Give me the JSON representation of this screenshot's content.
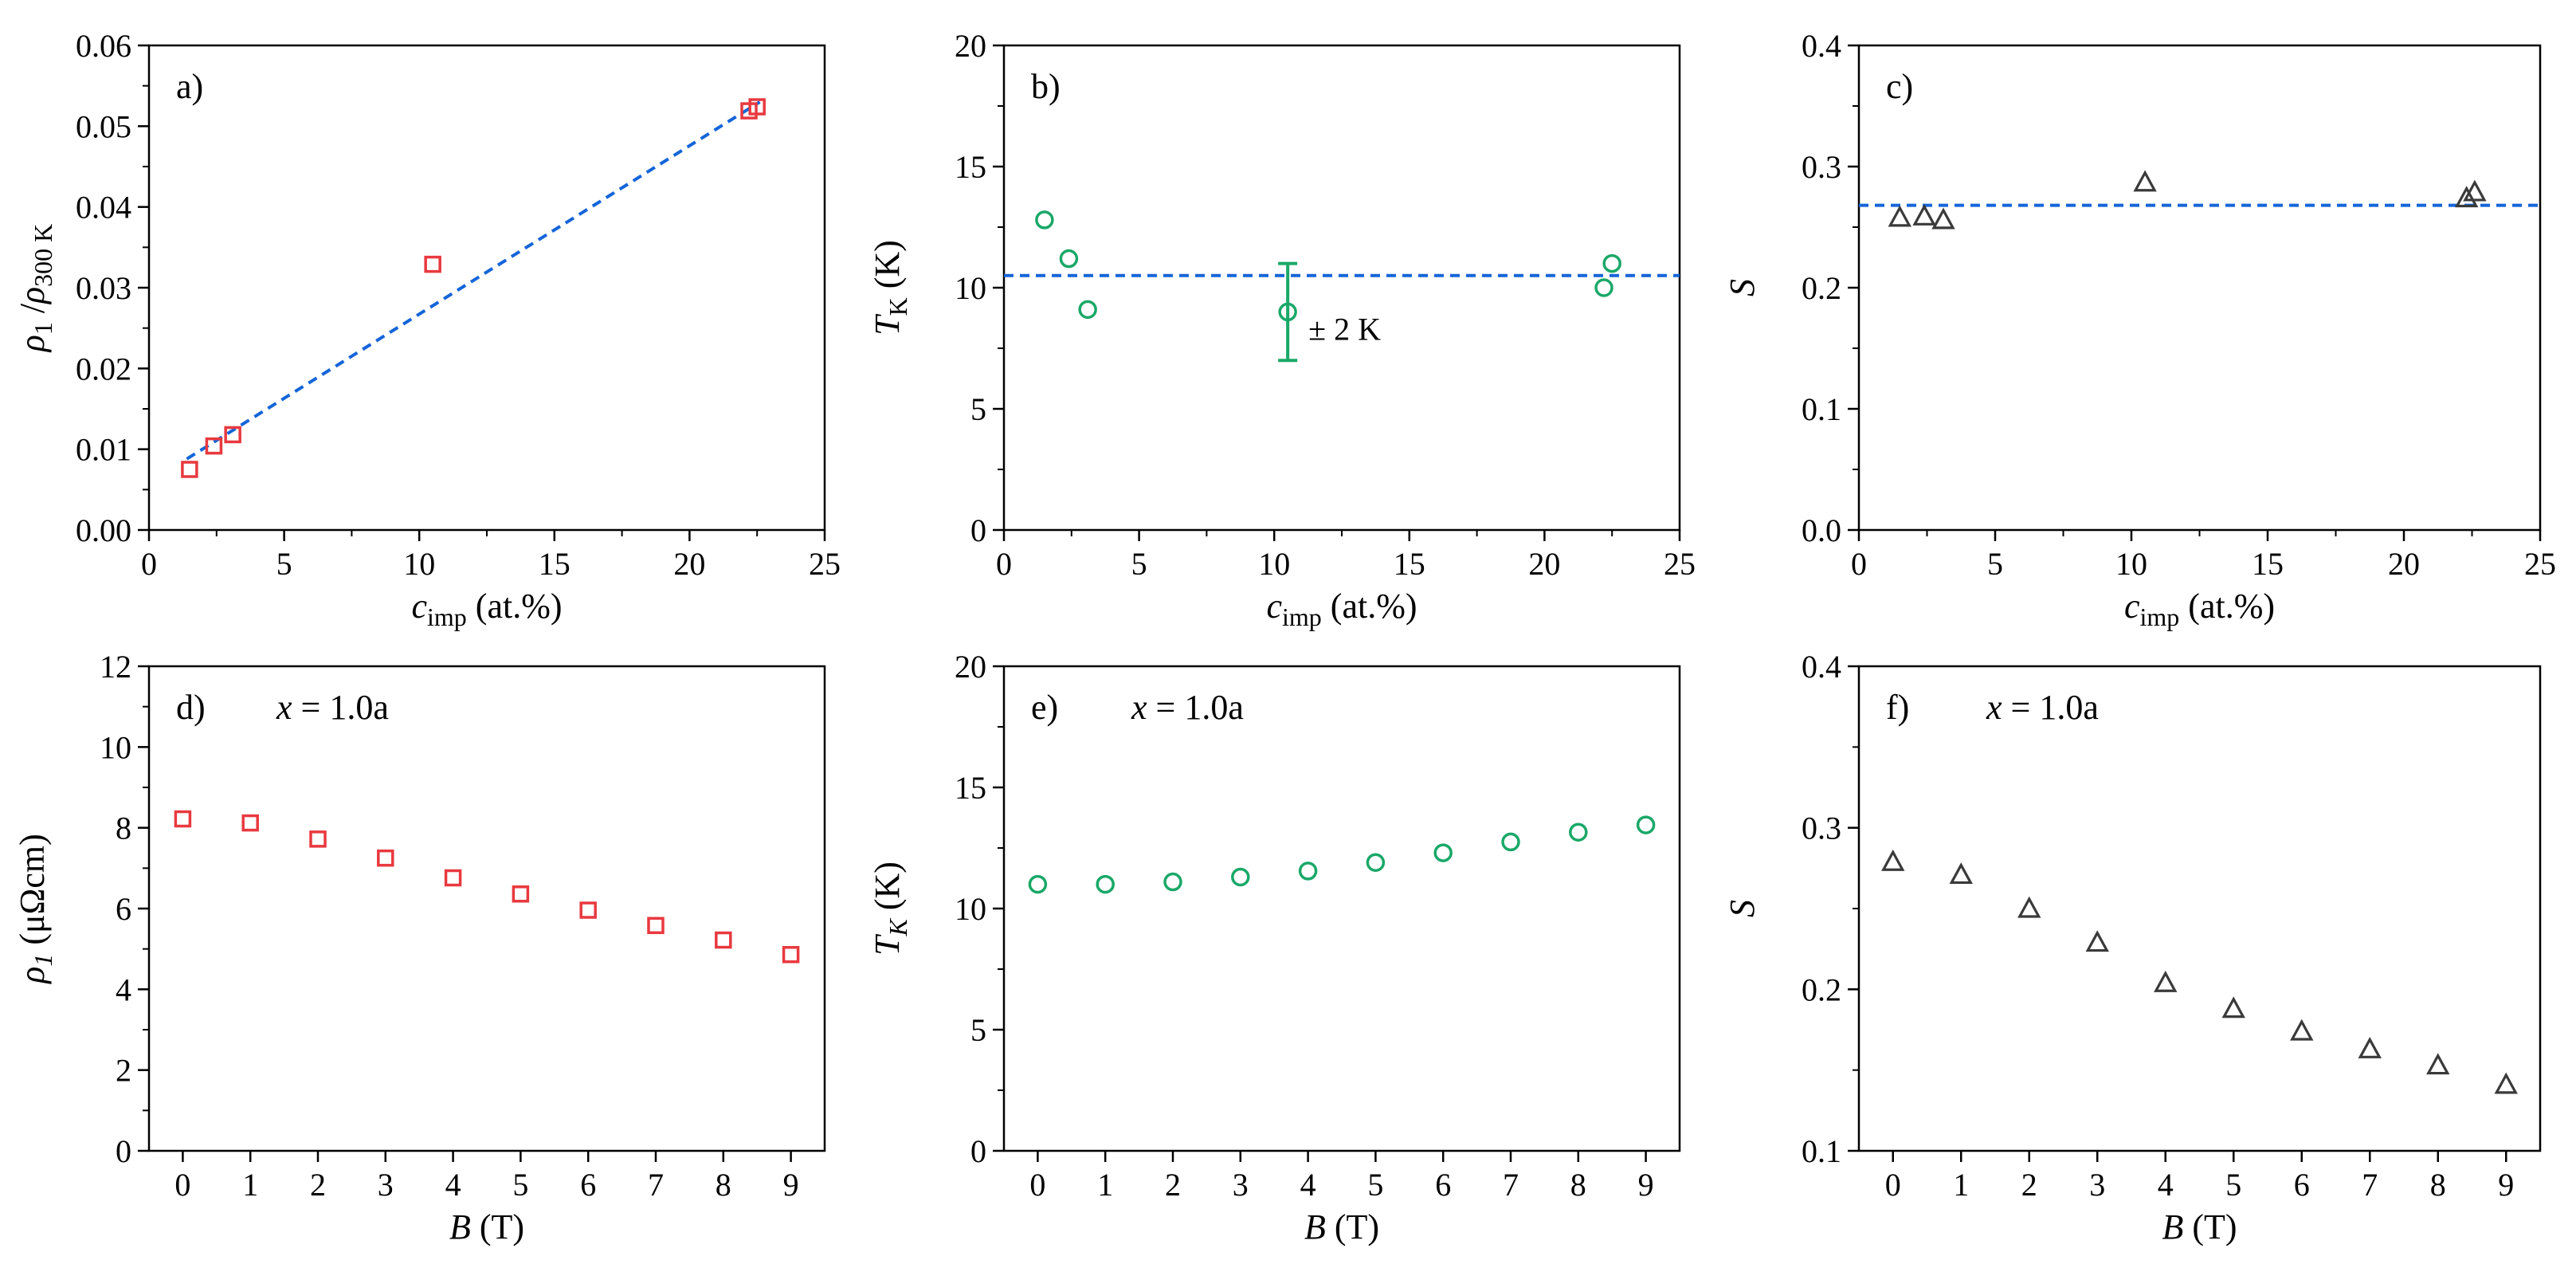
{
  "colors": {
    "red": "#e8393f",
    "green": "#1aa868",
    "gray": "#3a3a3a",
    "blue": "#1565d8",
    "axis": "#000000"
  },
  "chart_data": [
    {
      "id": "a",
      "type": "scatter",
      "tag": "a)",
      "note": "",
      "marker": "square",
      "color": "red",
      "xlabel": {
        "italic": "c",
        "sub": "imp",
        "rest": " (at.%)"
      },
      "ylabel": {
        "parts": [
          {
            "t": "ρ",
            "it": true
          },
          {
            "t": "1",
            "sub": true
          },
          {
            "t": " /"
          },
          {
            "t": "ρ",
            "it": true
          },
          {
            "t": "300 K",
            "sub": true
          }
        ]
      },
      "xlim": [
        0,
        25
      ],
      "ylim": [
        0,
        0.06
      ],
      "xticks": [
        0,
        5,
        10,
        15,
        20,
        25
      ],
      "xtick_labels": [
        "0",
        "5",
        "10",
        "15",
        "20",
        "25"
      ],
      "yticks": [
        0,
        0.01,
        0.02,
        0.03,
        0.04,
        0.05,
        0.06
      ],
      "ytick_labels": [
        "0.00",
        "0.01",
        "0.02",
        "0.03",
        "0.04",
        "0.05",
        "0.06"
      ],
      "points": [
        [
          1.5,
          0.0075
        ],
        [
          2.4,
          0.0104
        ],
        [
          3.1,
          0.0118
        ],
        [
          10.5,
          0.0329
        ],
        [
          22.2,
          0.0519
        ],
        [
          22.5,
          0.0524
        ]
      ],
      "fit_line": [
        [
          1.4,
          0.0088
        ],
        [
          22.6,
          0.053
        ]
      ]
    },
    {
      "id": "b",
      "type": "scatter",
      "tag": "b)",
      "note": "",
      "marker": "circle",
      "color": "green",
      "xlabel": {
        "italic": "c",
        "sub": "imp",
        "rest": " (at.%)"
      },
      "ylabel": {
        "parts": [
          {
            "t": "T",
            "it": true
          },
          {
            "t": "K",
            "sub": true
          },
          {
            "t": " (K)"
          }
        ]
      },
      "xlim": [
        0,
        25
      ],
      "ylim": [
        0,
        20
      ],
      "xticks": [
        0,
        5,
        10,
        15,
        20,
        25
      ],
      "xtick_labels": [
        "0",
        "5",
        "10",
        "15",
        "20",
        "25"
      ],
      "yticks": [
        0,
        5,
        10,
        15,
        20
      ],
      "ytick_labels": [
        "0",
        "5",
        "10",
        "15",
        "20"
      ],
      "points": [
        [
          1.5,
          12.8
        ],
        [
          2.4,
          11.2
        ],
        [
          3.1,
          9.1
        ],
        [
          10.5,
          9.0
        ],
        [
          22.2,
          10.0
        ],
        [
          22.5,
          11.0
        ]
      ],
      "hline": 10.5,
      "errorbar": {
        "x": 10.5,
        "y": 9.0,
        "err": 2.0,
        "label": "± 2 K"
      }
    },
    {
      "id": "c",
      "type": "scatter",
      "tag": "c)",
      "note": "",
      "marker": "triangle",
      "color": "gray",
      "xlabel": {
        "italic": "c",
        "sub": "imp",
        "rest": " (at.%)"
      },
      "ylabel": {
        "parts": [
          {
            "t": "S",
            "it": true
          }
        ]
      },
      "xlim": [
        0,
        25
      ],
      "ylim": [
        0,
        0.4
      ],
      "xticks": [
        0,
        5,
        10,
        15,
        20,
        25
      ],
      "xtick_labels": [
        "0",
        "5",
        "10",
        "15",
        "20",
        "25"
      ],
      "yticks": [
        0,
        0.1,
        0.2,
        0.3,
        0.4
      ],
      "ytick_labels": [
        "0.0",
        "0.1",
        "0.2",
        "0.3",
        "0.4"
      ],
      "points": [
        [
          1.5,
          0.258
        ],
        [
          2.4,
          0.259
        ],
        [
          3.1,
          0.256
        ],
        [
          10.5,
          0.287
        ],
        [
          22.3,
          0.274
        ],
        [
          22.6,
          0.279
        ]
      ],
      "hline": 0.268
    },
    {
      "id": "d",
      "type": "scatter",
      "tag": "d)",
      "note": "x = 1.0a",
      "marker": "square",
      "color": "red",
      "xlabel": {
        "italic": "B",
        "sub": "",
        "rest": " (T)"
      },
      "ylabel": {
        "parts": [
          {
            "t": "ρ",
            "it": true
          },
          {
            "t": "1",
            "sub": true,
            "it": true
          },
          {
            "t": " (μΩcm)"
          }
        ]
      },
      "xlim": [
        -0.5,
        9.5
      ],
      "ylim": [
        0,
        12
      ],
      "xticks": [
        0,
        1,
        2,
        3,
        4,
        5,
        6,
        7,
        8,
        9
      ],
      "xtick_labels": [
        "0",
        "1",
        "2",
        "3",
        "4",
        "5",
        "6",
        "7",
        "8",
        "9"
      ],
      "yticks": [
        0,
        2,
        4,
        6,
        8,
        10,
        12
      ],
      "ytick_labels": [
        "0",
        "2",
        "4",
        "6",
        "8",
        "10",
        "12"
      ],
      "points": [
        [
          0,
          8.22
        ],
        [
          1,
          8.12
        ],
        [
          2,
          7.72
        ],
        [
          3,
          7.25
        ],
        [
          4,
          6.76
        ],
        [
          5,
          6.36
        ],
        [
          6,
          5.96
        ],
        [
          7,
          5.58
        ],
        [
          8,
          5.22
        ],
        [
          9,
          4.86
        ]
      ]
    },
    {
      "id": "e",
      "type": "scatter",
      "tag": "e)",
      "note": "x = 1.0a",
      "marker": "circle",
      "color": "green",
      "xlabel": {
        "italic": "B",
        "sub": "",
        "rest": " (T)"
      },
      "ylabel": {
        "parts": [
          {
            "t": "T",
            "it": true
          },
          {
            "t": "K",
            "sub": true,
            "it": true
          },
          {
            "t": " (K)"
          }
        ]
      },
      "xlim": [
        -0.5,
        9.5
      ],
      "ylim": [
        0,
        20
      ],
      "xticks": [
        0,
        1,
        2,
        3,
        4,
        5,
        6,
        7,
        8,
        9
      ],
      "xtick_labels": [
        "0",
        "1",
        "2",
        "3",
        "4",
        "5",
        "6",
        "7",
        "8",
        "9"
      ],
      "yticks": [
        0,
        5,
        10,
        15,
        20
      ],
      "ytick_labels": [
        "0",
        "5",
        "10",
        "15",
        "20"
      ],
      "points": [
        [
          0,
          11.0
        ],
        [
          1,
          11.0
        ],
        [
          2,
          11.1
        ],
        [
          3,
          11.3
        ],
        [
          4,
          11.55
        ],
        [
          5,
          11.9
        ],
        [
          6,
          12.3
        ],
        [
          7,
          12.75
        ],
        [
          8,
          13.15
        ],
        [
          9,
          13.45
        ]
      ]
    },
    {
      "id": "f",
      "type": "scatter",
      "tag": "f)",
      "note": "x = 1.0a",
      "marker": "triangle",
      "color": "gray",
      "xlabel": {
        "italic": "B",
        "sub": "",
        "rest": " (T)"
      },
      "ylabel": {
        "parts": [
          {
            "t": "S",
            "it": true
          }
        ]
      },
      "xlim": [
        -0.5,
        9.5
      ],
      "ylim": [
        0.1,
        0.4
      ],
      "xticks": [
        0,
        1,
        2,
        3,
        4,
        5,
        6,
        7,
        8,
        9
      ],
      "xtick_labels": [
        "0",
        "1",
        "2",
        "3",
        "4",
        "5",
        "6",
        "7",
        "8",
        "9"
      ],
      "yticks": [
        0.1,
        0.2,
        0.3,
        0.4
      ],
      "ytick_labels": [
        "0.1",
        "0.2",
        "0.3",
        "0.4"
      ],
      "points": [
        [
          0,
          0.279
        ],
        [
          1,
          0.271
        ],
        [
          2,
          0.25
        ],
        [
          3,
          0.229
        ],
        [
          4,
          0.204
        ],
        [
          5,
          0.188
        ],
        [
          6,
          0.174
        ],
        [
          7,
          0.163
        ],
        [
          8,
          0.153
        ],
        [
          9,
          0.141
        ]
      ]
    }
  ]
}
